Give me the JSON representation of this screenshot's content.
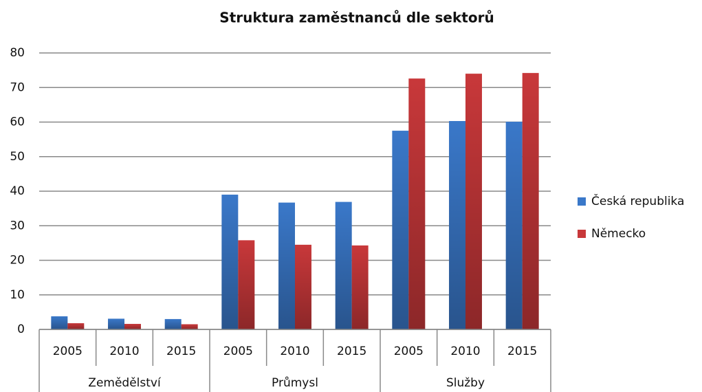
{
  "chart_data": {
    "type": "bar",
    "title": "Struktura zaměstnanců dle sektorů",
    "categories": [
      "2005",
      "2010",
      "2015",
      "2005",
      "2010",
      "2015",
      "2005",
      "2010",
      "2015"
    ],
    "groups": [
      "Zemědělství",
      "Průmysl",
      "Služby"
    ],
    "series": [
      {
        "name": "Česká republika",
        "color": "#3a78c9",
        "values": [
          3.8,
          3.1,
          3.0,
          39.0,
          36.7,
          36.9,
          57.5,
          60.3,
          60.1
        ]
      },
      {
        "name": "Německo",
        "color": "#c8383a",
        "values": [
          1.8,
          1.6,
          1.5,
          25.8,
          24.5,
          24.3,
          72.6,
          74.0,
          74.2
        ]
      }
    ],
    "ylim": [
      0,
      80
    ],
    "yticks": [
      0,
      10,
      20,
      30,
      40,
      50,
      60,
      70,
      80
    ],
    "grid": true,
    "legend": "right"
  }
}
